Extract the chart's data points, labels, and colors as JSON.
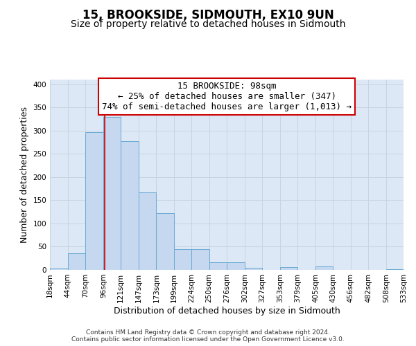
{
  "title": "15, BROOKSIDE, SIDMOUTH, EX10 9UN",
  "subtitle": "Size of property relative to detached houses in Sidmouth",
  "xlabel": "Distribution of detached houses by size in Sidmouth",
  "ylabel": "Number of detached properties",
  "bar_left_edges": [
    18,
    44,
    70,
    96,
    121,
    147,
    173,
    199,
    224,
    250,
    276,
    302,
    327,
    353,
    379,
    405,
    430,
    456,
    482,
    508
  ],
  "bar_widths": [
    26,
    26,
    26,
    25,
    26,
    26,
    26,
    25,
    26,
    26,
    26,
    25,
    26,
    26,
    26,
    25,
    26,
    26,
    26,
    25
  ],
  "bar_heights": [
    3,
    36,
    297,
    330,
    278,
    167,
    123,
    44,
    44,
    16,
    17,
    5,
    0,
    6,
    0,
    7,
    0,
    0,
    0,
    2
  ],
  "tick_labels": [
    "18sqm",
    "44sqm",
    "70sqm",
    "96sqm",
    "121sqm",
    "147sqm",
    "173sqm",
    "199sqm",
    "224sqm",
    "250sqm",
    "276sqm",
    "302sqm",
    "327sqm",
    "353sqm",
    "379sqm",
    "405sqm",
    "430sqm",
    "456sqm",
    "482sqm",
    "508sqm",
    "533sqm"
  ],
  "bar_color": "#c5d8f0",
  "bar_edge_color": "#6aaad4",
  "property_line_x": 98,
  "annotation_line1": "15 BROOKSIDE: 98sqm",
  "annotation_line2": "← 25% of detached houses are smaller (347)",
  "annotation_line3": "74% of semi-detached houses are larger (1,013) →",
  "annotation_box_color": "#ffffff",
  "annotation_box_edge_color": "#cc0000",
  "vline_color": "#cc0000",
  "grid_color": "#c8d4e0",
  "plot_bg_color": "#dce8f5",
  "background_color": "#ffffff",
  "ylim": [
    0,
    410
  ],
  "yticks": [
    0,
    50,
    100,
    150,
    200,
    250,
    300,
    350,
    400
  ],
  "footer_line1": "Contains HM Land Registry data © Crown copyright and database right 2024.",
  "footer_line2": "Contains public sector information licensed under the Open Government Licence v3.0.",
  "title_fontsize": 12,
  "subtitle_fontsize": 10,
  "tick_fontsize": 7.5,
  "ylabel_fontsize": 9,
  "xlabel_fontsize": 9,
  "annotation_fontsize": 9
}
